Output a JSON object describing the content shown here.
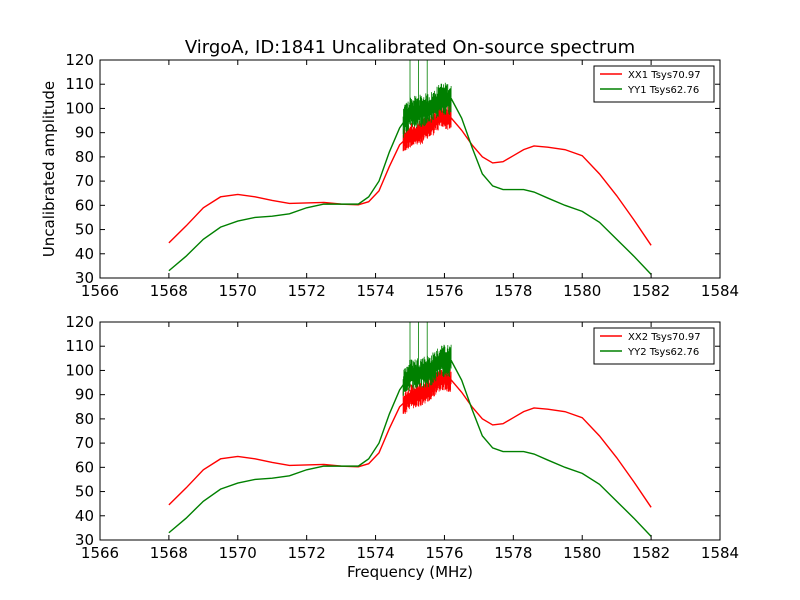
{
  "figure": {
    "title": "VirgoA, ID:1841 Uncalibrated On-source spectrum",
    "ylabel": "Uncalibrated amplitude",
    "xlabel": "Frequency (MHz)"
  },
  "colors": {
    "xx": "#ff0000",
    "yy": "#008000"
  },
  "chart_data": [
    {
      "type": "line",
      "xlim": [
        1566,
        1584
      ],
      "ylim": [
        30,
        120
      ],
      "xticks": [
        1566,
        1568,
        1570,
        1572,
        1574,
        1576,
        1578,
        1580,
        1582,
        1584
      ],
      "yticks": [
        30,
        40,
        50,
        60,
        70,
        80,
        90,
        100,
        110,
        120
      ],
      "grid": false,
      "legend": "top-right",
      "series": [
        {
          "name": "XX1 Tsys70.97",
          "color": "#ff0000",
          "x": [
            1568,
            1568.5,
            1569,
            1569.5,
            1570,
            1570.5,
            1571,
            1571.5,
            1572,
            1572.5,
            1573,
            1573.5,
            1573.8,
            1574.1,
            1574.4,
            1574.7,
            1575,
            1575.3,
            1575.6,
            1575.9,
            1576.2,
            1576.5,
            1576.8,
            1577.1,
            1577.4,
            1577.7,
            1578,
            1578.3,
            1578.6,
            1579,
            1579.5,
            1580,
            1580.5,
            1581,
            1581.5,
            1582
          ],
          "y": [
            44.5,
            51.5,
            59,
            63.5,
            64.5,
            63.5,
            62,
            60.8,
            61,
            61.2,
            60.5,
            60.2,
            61.5,
            66,
            76,
            85,
            89,
            90,
            93,
            97,
            96,
            91,
            85,
            80,
            77.5,
            78,
            80.5,
            83,
            84.5,
            84,
            83,
            80.5,
            73,
            64,
            54,
            43.5
          ]
        },
        {
          "name": "YY1 Tsys62.76",
          "color": "#008000",
          "x": [
            1568,
            1568.5,
            1569,
            1569.5,
            1570,
            1570.5,
            1571,
            1571.5,
            1572,
            1572.5,
            1573,
            1573.5,
            1573.8,
            1574.1,
            1574.4,
            1574.7,
            1575,
            1575.3,
            1575.6,
            1575.9,
            1576.2,
            1576.5,
            1576.8,
            1577.1,
            1577.4,
            1577.7,
            1578,
            1578.3,
            1578.6,
            1579,
            1579.5,
            1580,
            1580.5,
            1581,
            1581.5,
            1582
          ],
          "y": [
            33,
            39,
            46,
            51,
            53.5,
            55,
            55.5,
            56.5,
            59,
            60.5,
            60.5,
            60.5,
            63.5,
            70,
            82,
            92,
            98,
            99,
            100,
            104,
            104,
            96,
            84,
            73,
            68,
            66.5,
            66.5,
            66.5,
            65.5,
            63,
            60,
            57.5,
            53,
            46,
            39,
            31.5
          ]
        }
      ]
    },
    {
      "type": "line",
      "xlim": [
        1566,
        1584
      ],
      "ylim": [
        30,
        120
      ],
      "xticks": [
        1566,
        1568,
        1570,
        1572,
        1574,
        1576,
        1578,
        1580,
        1582,
        1584
      ],
      "yticks": [
        30,
        40,
        50,
        60,
        70,
        80,
        90,
        100,
        110,
        120
      ],
      "grid": false,
      "legend": "top-right",
      "series": [
        {
          "name": "XX2 Tsys70.97",
          "color": "#ff0000",
          "x": [
            1568,
            1568.5,
            1569,
            1569.5,
            1570,
            1570.5,
            1571,
            1571.5,
            1572,
            1572.5,
            1573,
            1573.5,
            1573.8,
            1574.1,
            1574.4,
            1574.7,
            1575,
            1575.3,
            1575.6,
            1575.9,
            1576.2,
            1576.5,
            1576.8,
            1577.1,
            1577.4,
            1577.7,
            1578,
            1578.3,
            1578.6,
            1579,
            1579.5,
            1580,
            1580.5,
            1581,
            1581.5,
            1582
          ],
          "y": [
            44.5,
            51.5,
            59,
            63.5,
            64.5,
            63.5,
            62,
            60.8,
            61,
            61.2,
            60.5,
            60.2,
            61.5,
            66,
            76,
            85,
            89,
            90,
            93,
            97,
            96,
            91,
            85,
            80,
            77.5,
            78,
            80.5,
            83,
            84.5,
            84,
            83,
            80.5,
            73,
            64,
            54,
            43.5
          ]
        },
        {
          "name": "YY2 Tsys62.76",
          "color": "#008000",
          "x": [
            1568,
            1568.5,
            1569,
            1569.5,
            1570,
            1570.5,
            1571,
            1571.5,
            1572,
            1572.5,
            1573,
            1573.5,
            1573.8,
            1574.1,
            1574.4,
            1574.7,
            1575,
            1575.3,
            1575.6,
            1575.9,
            1576.2,
            1576.5,
            1576.8,
            1577.1,
            1577.4,
            1577.7,
            1578,
            1578.3,
            1578.6,
            1579,
            1579.5,
            1580,
            1580.5,
            1581,
            1581.5,
            1582
          ],
          "y": [
            33,
            39,
            46,
            51,
            53.5,
            55,
            55.5,
            56.5,
            59,
            60.5,
            60.5,
            60.5,
            63.5,
            70,
            82,
            92,
            98,
            99,
            100,
            104,
            104,
            96,
            84,
            73,
            68,
            66.5,
            66.5,
            66.5,
            65.5,
            63,
            60,
            57.5,
            53,
            46,
            39,
            31.5
          ]
        }
      ]
    }
  ]
}
